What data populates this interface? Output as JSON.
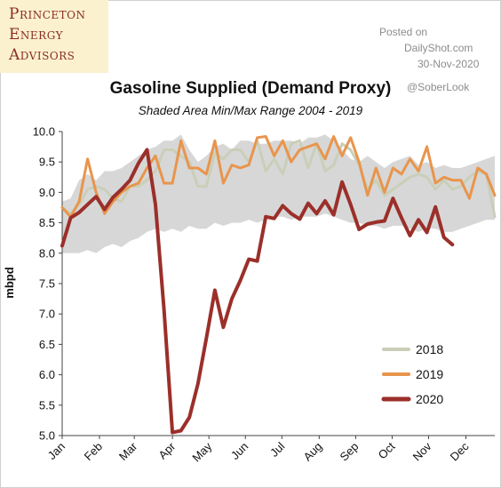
{
  "logo": {
    "line1": "Princeton",
    "line2": "Energy",
    "line3": "Advisors"
  },
  "watermark": {
    "line1": "Posted on",
    "line2": "DailyShot.com",
    "line3": "30-Nov-2020"
  },
  "handle": "@SoberLook",
  "colors": {
    "band": "#d7d7d7",
    "s2018": "#c9cfb8",
    "s2019": "#e8954d",
    "s2020": "#9b2f2a"
  },
  "chart_data": {
    "type": "line",
    "title": "Gasoline Supplied (Demand Proxy)",
    "subtitle": "Shaded Area Min/Max Range 2004 - 2019",
    "xlabel": "",
    "ylabel": "mbpd",
    "ylim": [
      5.0,
      10.0
    ],
    "yticks": [
      "5.0",
      "5.5",
      "6.0",
      "6.5",
      "7.0",
      "7.5",
      "8.0",
      "8.5",
      "9.0",
      "9.5",
      "10.0"
    ],
    "xlim": [
      1,
      52
    ],
    "month_ticks": [
      {
        "label": "Jan",
        "week": 1
      },
      {
        "label": "Feb",
        "week": 5.4
      },
      {
        "label": "Mar",
        "week": 9.5
      },
      {
        "label": "Apr",
        "week": 14
      },
      {
        "label": "May",
        "week": 18.3
      },
      {
        "label": "Jun",
        "week": 22.6
      },
      {
        "label": "Jul",
        "week": 26.9
      },
      {
        "label": "Aug",
        "week": 31.3
      },
      {
        "label": "Sep",
        "week": 35.6
      },
      {
        "label": "Oct",
        "week": 39.9
      },
      {
        "label": "Nov",
        "week": 44.2
      },
      {
        "label": "Dec",
        "week": 48.6
      }
    ],
    "grid": false,
    "legend": "bottom-right",
    "band": {
      "name": "Min/Max Range 2004 - 2019",
      "weeks": [
        1,
        2,
        3,
        4,
        5,
        6,
        7,
        8,
        9,
        10,
        11,
        12,
        13,
        14,
        15,
        16,
        17,
        18,
        19,
        20,
        21,
        22,
        23,
        24,
        25,
        26,
        27,
        28,
        29,
        30,
        31,
        32,
        33,
        34,
        35,
        36,
        37,
        38,
        39,
        40,
        41,
        42,
        43,
        44,
        45,
        46,
        47,
        48,
        49,
        50,
        51,
        52
      ],
      "max": [
        8.85,
        8.9,
        9.2,
        9.3,
        9.2,
        9.35,
        9.35,
        9.4,
        9.5,
        9.6,
        9.7,
        9.75,
        9.85,
        9.85,
        9.95,
        9.7,
        9.5,
        9.6,
        9.75,
        9.8,
        9.7,
        9.85,
        9.85,
        9.8,
        9.8,
        9.85,
        9.85,
        9.85,
        9.8,
        9.9,
        9.9,
        9.95,
        9.85,
        9.7,
        9.55,
        9.5,
        9.6,
        9.5,
        9.4,
        9.5,
        9.55,
        9.6,
        9.45,
        9.5,
        9.4,
        9.45,
        9.4,
        9.4,
        9.45,
        9.5,
        9.55,
        9.6
      ],
      "min": [
        8.0,
        8.0,
        8.0,
        8.05,
        8.0,
        8.1,
        8.15,
        8.1,
        8.2,
        8.25,
        8.35,
        8.4,
        8.35,
        8.4,
        8.35,
        8.45,
        8.4,
        8.4,
        8.5,
        8.45,
        8.5,
        8.5,
        8.55,
        8.5,
        8.55,
        8.6,
        8.6,
        8.55,
        8.6,
        8.6,
        8.6,
        8.65,
        8.6,
        8.55,
        8.5,
        8.5,
        8.45,
        8.45,
        8.4,
        8.45,
        8.45,
        8.4,
        8.35,
        8.4,
        8.4,
        8.35,
        8.35,
        8.4,
        8.45,
        8.5,
        8.55,
        8.55
      ]
    },
    "series": [
      {
        "name": "2018",
        "weeks": [
          1,
          2,
          3,
          4,
          5,
          6,
          7,
          8,
          9,
          10,
          11,
          12,
          13,
          14,
          15,
          16,
          17,
          18,
          19,
          20,
          21,
          22,
          23,
          24,
          25,
          26,
          27,
          28,
          29,
          30,
          31,
          32,
          33,
          34,
          35,
          36,
          37,
          38,
          39,
          40,
          41,
          42,
          43,
          44,
          45,
          46,
          47,
          48,
          49,
          50,
          51,
          52
        ],
        "values": [
          8.75,
          8.65,
          8.8,
          9.05,
          9.1,
          9.05,
          8.9,
          8.85,
          9.1,
          9.1,
          9.2,
          9.35,
          9.7,
          9.7,
          9.6,
          9.5,
          9.1,
          9.1,
          9.65,
          9.55,
          9.7,
          9.7,
          9.5,
          9.85,
          9.35,
          9.55,
          9.3,
          9.8,
          9.85,
          9.4,
          9.8,
          9.35,
          9.45,
          9.8,
          9.7,
          9.45,
          9.05,
          9.2,
          8.95,
          9.05,
          9.15,
          9.25,
          9.3,
          9.25,
          9.05,
          9.2,
          9.05,
          9.1,
          9.25,
          9.35,
          9.3,
          8.6
        ]
      },
      {
        "name": "2019",
        "weeks": [
          1,
          2,
          3,
          4,
          5,
          6,
          7,
          8,
          9,
          10,
          11,
          12,
          13,
          14,
          15,
          16,
          17,
          18,
          19,
          20,
          21,
          22,
          23,
          24,
          25,
          26,
          27,
          28,
          29,
          30,
          31,
          32,
          33,
          34,
          35,
          36,
          37,
          38,
          39,
          40,
          41,
          42,
          43,
          44,
          45,
          46,
          47,
          48,
          49,
          50,
          51,
          52
        ],
        "values": [
          8.75,
          8.6,
          8.85,
          9.55,
          9.0,
          8.65,
          8.85,
          9.0,
          9.1,
          9.15,
          9.4,
          9.6,
          9.15,
          9.15,
          9.85,
          9.4,
          9.4,
          9.3,
          9.85,
          9.15,
          9.45,
          9.4,
          9.45,
          9.9,
          9.92,
          9.6,
          9.85,
          9.5,
          9.7,
          9.75,
          9.8,
          9.55,
          9.92,
          9.6,
          9.9,
          9.5,
          8.95,
          9.4,
          9.0,
          9.4,
          9.3,
          9.55,
          9.35,
          9.75,
          9.15,
          9.25,
          9.2,
          9.2,
          8.9,
          9.4,
          9.3,
          8.95
        ]
      },
      {
        "name": "2020",
        "weeks": [
          1,
          2,
          3,
          4,
          5,
          6,
          7,
          8,
          9,
          10,
          11,
          12,
          13,
          14,
          15,
          16,
          17,
          18,
          19,
          20,
          21,
          22,
          23,
          24,
          25,
          26,
          27,
          28,
          29,
          30,
          31,
          32,
          33,
          34,
          35,
          36,
          37,
          38,
          39,
          40,
          41,
          42,
          43,
          44,
          45,
          46,
          47
        ],
        "values": [
          8.12,
          8.58,
          8.67,
          8.8,
          8.93,
          8.72,
          8.92,
          9.05,
          9.2,
          9.48,
          9.7,
          8.8,
          7.08,
          5.05,
          5.08,
          5.3,
          5.85,
          6.6,
          7.39,
          6.78,
          7.25,
          7.55,
          7.9,
          7.87,
          8.6,
          8.57,
          8.78,
          8.65,
          8.56,
          8.82,
          8.65,
          8.86,
          8.63,
          9.17,
          8.8,
          8.39,
          8.48,
          8.51,
          8.53,
          8.9,
          8.58,
          8.29,
          8.55,
          8.34,
          8.76,
          8.26,
          8.14
        ]
      }
    ]
  }
}
